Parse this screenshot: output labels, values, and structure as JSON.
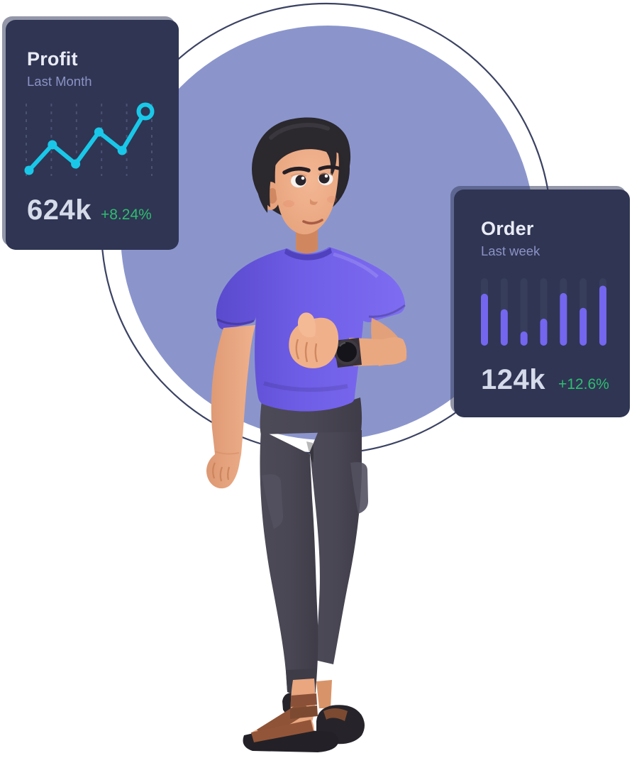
{
  "scene": {
    "background_color": "#ffffff",
    "circle_fill_color": "#8b95cc",
    "circle_outline_color": "#3b4263",
    "character": {
      "description": "3d cartoon man with dark hair, purple t-shirt, dark jogger pants, brown sandals, black wristwatch, giving a thumbs-up",
      "shirt_color": "#6e5de6",
      "pants_color": "#494753",
      "skin_color": "#e9a781",
      "hair_color": "#2a272d",
      "sandal_strap_color": "#8a5138",
      "sole_color": "#232127",
      "watch_color": "#15141a"
    }
  },
  "profit_card": {
    "title": "Profit",
    "subtitle": "Last Month",
    "value": "624k",
    "delta": "+8.24%",
    "delta_color": "#2fbd70",
    "accent_color": "#19c8e8",
    "background_color": "#2f3553",
    "title_color": "#e9ebf5",
    "subtitle_color": "#8c93c5",
    "value_color": "#d6dbea",
    "gridline_color": "#4b5273"
  },
  "order_card": {
    "title": "Order",
    "subtitle": "Last week",
    "value": "124k",
    "delta": "+12.6%",
    "delta_color": "#2fbd70",
    "accent_color": "#7466ef",
    "bar_track_color": "#373e5c",
    "background_color": "#2f3553",
    "title_color": "#e9ebf5",
    "subtitle_color": "#8c93c5",
    "value_color": "#d6dbea"
  },
  "chart_data": [
    {
      "type": "line",
      "title": "Profit — Last Month",
      "x": [
        1,
        2,
        3,
        4,
        5,
        6
      ],
      "values": [
        7,
        43,
        16,
        61,
        35,
        90
      ],
      "ylim": [
        0,
        100
      ],
      "unit": "relative sparkline height (no axis labels shown)",
      "grid": "vertical dashed gridlines",
      "legend": "none",
      "line_color": "#19c8e8",
      "last_point_style": "hollow ring marker"
    },
    {
      "type": "bar",
      "title": "Order — Last week",
      "categories": [
        "1",
        "2",
        "3",
        "4",
        "5",
        "6",
        "7"
      ],
      "values": [
        77,
        54,
        21,
        40,
        78,
        56,
        89
      ],
      "ylim": [
        0,
        100
      ],
      "unit": "percent of full track height (no axis labels shown)",
      "grid": "off",
      "legend": "none",
      "bar_color": "#7466ef",
      "track_color": "#373e5c",
      "bar_style": "rounded pill bars over full-height darker tracks"
    }
  ]
}
